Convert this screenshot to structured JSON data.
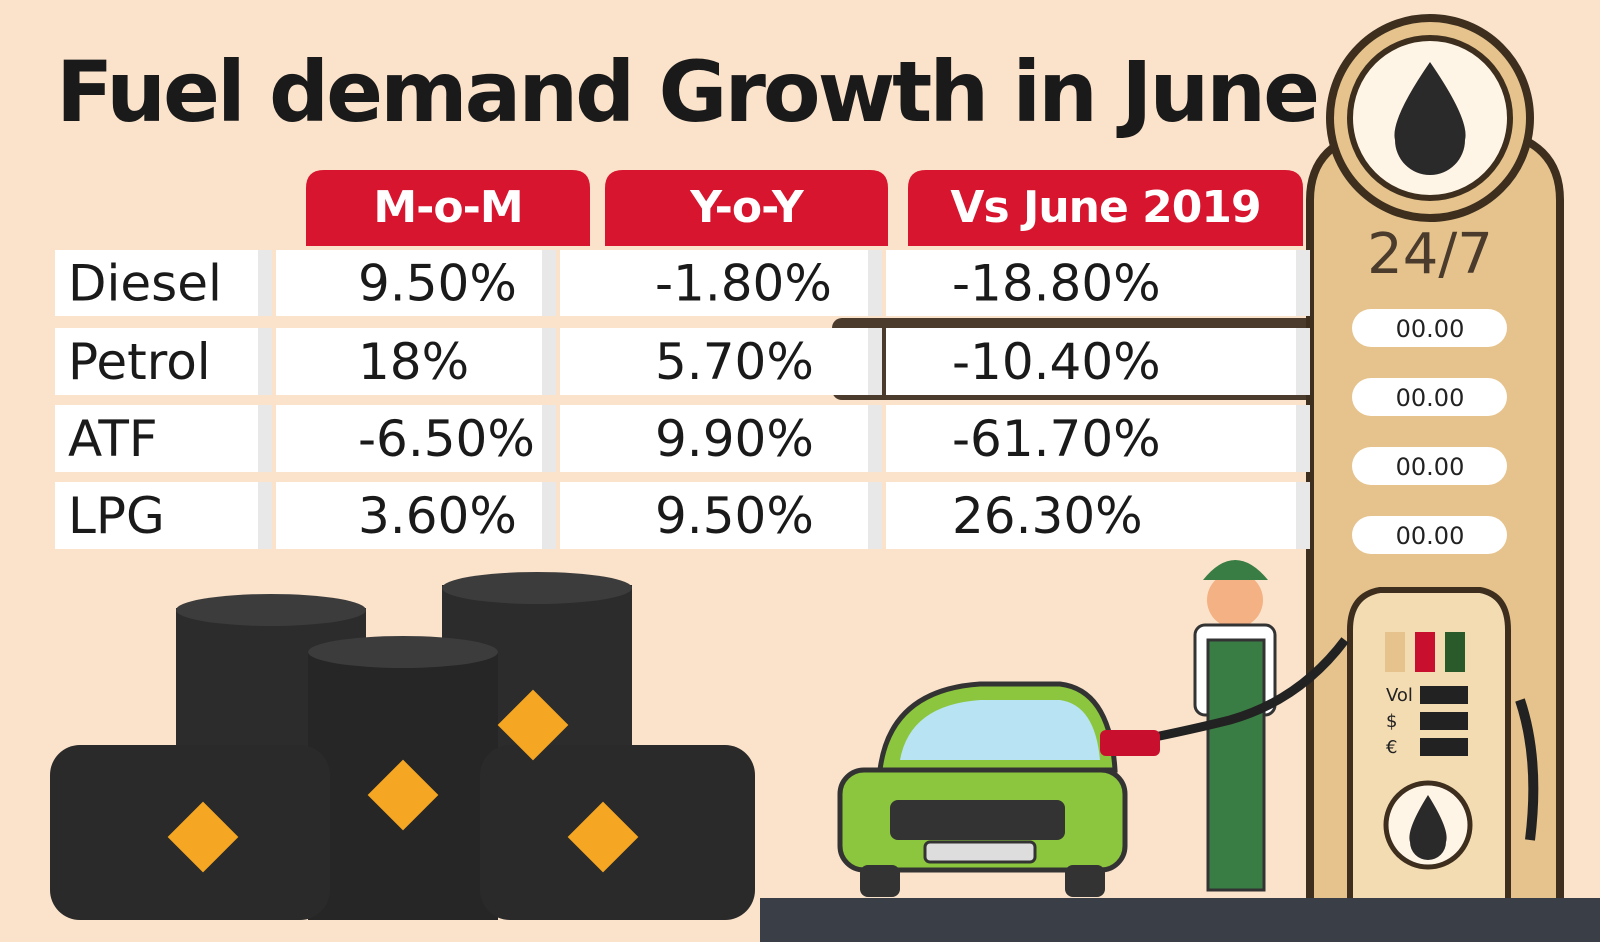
{
  "header": {
    "title": "Fuel demand Growth in June"
  },
  "table": {
    "columns": [
      "M-o-M",
      "Y-o-Y",
      "Vs June 2019"
    ],
    "rows": [
      [
        "Diesel",
        "9.50%",
        "-1.80%",
        "-18.80%"
      ],
      [
        "Petrol",
        "18%",
        "5.70%",
        "-10.40%"
      ],
      [
        "ATF",
        "-6.50%",
        "9.90%",
        "-61.70%"
      ],
      [
        "LPG",
        "3.60%",
        "9.50%",
        "26.30%"
      ]
    ]
  },
  "pump": {
    "sign": "24/7",
    "displays": [
      "00.00",
      "00.00",
      "00.00",
      "00.00"
    ],
    "labels": [
      "Vol",
      "$",
      "€"
    ]
  }
}
